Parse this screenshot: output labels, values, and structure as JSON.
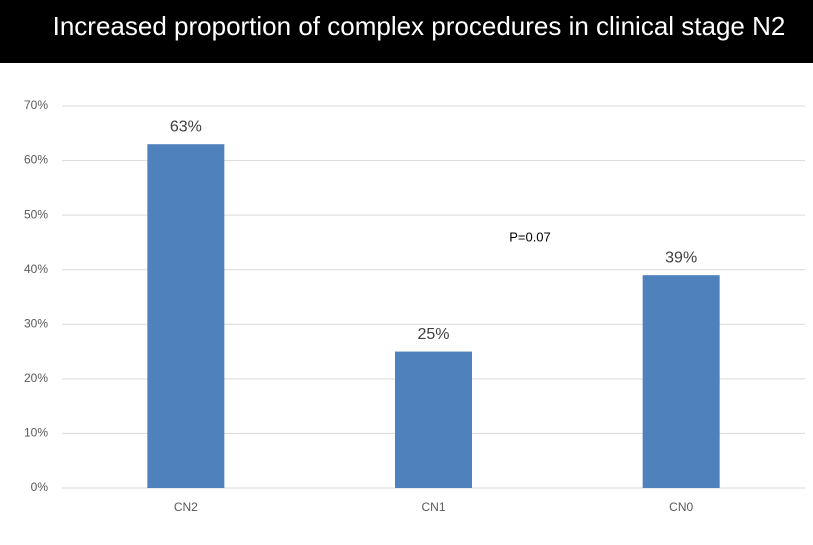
{
  "chart_data": {
    "type": "bar",
    "title": "Increased proportion of complex procedures in clinical stage N2",
    "categories": [
      "CN2",
      "CN1",
      "CN0"
    ],
    "values": [
      63,
      25,
      39
    ],
    "value_labels": [
      "63%",
      "25%",
      "39%"
    ],
    "color": "#4f81bd",
    "ylim": [
      0,
      70
    ],
    "yticks": [
      {
        "value": 0,
        "label": "0%"
      },
      {
        "value": 10,
        "label": "10%"
      },
      {
        "value": 20,
        "label": "20%"
      },
      {
        "value": 30,
        "label": "30%"
      },
      {
        "value": 40,
        "label": "40%"
      },
      {
        "value": 50,
        "label": "50%"
      },
      {
        "value": 60,
        "label": "60%"
      },
      {
        "value": 70,
        "label": "70%"
      }
    ],
    "grid": true,
    "annotation": "P=0.07"
  }
}
